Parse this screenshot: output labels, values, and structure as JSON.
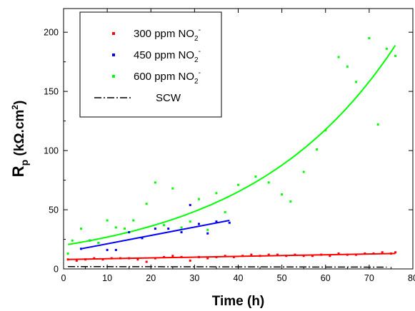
{
  "chart_data": {
    "type": "scatter",
    "xlabel": "Time (h)",
    "ylabel": {
      "main": "R",
      "sub": "p",
      "unit": " (kΩ.cm",
      "sup": "2",
      "close": ")"
    },
    "xlim": [
      0,
      80
    ],
    "ylim": [
      0,
      220
    ],
    "xticks": [
      0,
      10,
      20,
      30,
      40,
      50,
      60,
      70,
      80
    ],
    "yticks": [
      0,
      50,
      100,
      150,
      200
    ],
    "grid": false,
    "legend_position": "top-left",
    "series": [
      {
        "name": "300 ppm NO",
        "name_sub": "2",
        "name_sup": "-",
        "color": "#ff0000",
        "points": [
          [
            1,
            8
          ],
          [
            3,
            7
          ],
          [
            5,
            8
          ],
          [
            7,
            9
          ],
          [
            9,
            8
          ],
          [
            11,
            9
          ],
          [
            13,
            9
          ],
          [
            15,
            9
          ],
          [
            17,
            8
          ],
          [
            19,
            6
          ],
          [
            21,
            9
          ],
          [
            23,
            10
          ],
          [
            25,
            11
          ],
          [
            27,
            10
          ],
          [
            29,
            7
          ],
          [
            31,
            10
          ],
          [
            33,
            9
          ],
          [
            35,
            10
          ],
          [
            37,
            11
          ],
          [
            39,
            10
          ],
          [
            41,
            11
          ],
          [
            43,
            12
          ],
          [
            45,
            11
          ],
          [
            47,
            12
          ],
          [
            49,
            12
          ],
          [
            51,
            11
          ],
          [
            53,
            12
          ],
          [
            55,
            11
          ],
          [
            57,
            11
          ],
          [
            59,
            12
          ],
          [
            61,
            11
          ],
          [
            63,
            13
          ],
          [
            65,
            12
          ],
          [
            67,
            12
          ],
          [
            69,
            13
          ],
          [
            71,
            13
          ],
          [
            73,
            14
          ],
          [
            75,
            13
          ],
          [
            76,
            14
          ]
        ],
        "fit": {
          "x": [
            1,
            76
          ],
          "y": [
            8,
            13
          ]
        }
      },
      {
        "name": "450 ppm NO",
        "name_sub": "2",
        "name_sup": "-",
        "color": "#0000ff",
        "points": [
          [
            4,
            17
          ],
          [
            6,
            24
          ],
          [
            8,
            22
          ],
          [
            10,
            16
          ],
          [
            12,
            16
          ],
          [
            15,
            31
          ],
          [
            18,
            26
          ],
          [
            21,
            34
          ],
          [
            24,
            34
          ],
          [
            27,
            31
          ],
          [
            29,
            54
          ],
          [
            31,
            38
          ],
          [
            33,
            30
          ],
          [
            35,
            40
          ],
          [
            38,
            39
          ]
        ],
        "fit": {
          "x": [
            4,
            38
          ],
          "y": [
            17,
            41
          ]
        }
      },
      {
        "name": "600 ppm NO",
        "name_sub": "2",
        "name_sup": "-",
        "color": "#00ff00",
        "points": [
          [
            1,
            13
          ],
          [
            2,
            24
          ],
          [
            4,
            34
          ],
          [
            6,
            24
          ],
          [
            8,
            22
          ],
          [
            10,
            41
          ],
          [
            12,
            35
          ],
          [
            14,
            34
          ],
          [
            16,
            41
          ],
          [
            19,
            55
          ],
          [
            21,
            73
          ],
          [
            23,
            37
          ],
          [
            25,
            68
          ],
          [
            27,
            35
          ],
          [
            29,
            40
          ],
          [
            31,
            59
          ],
          [
            33,
            33
          ],
          [
            35,
            64
          ],
          [
            37,
            48
          ],
          [
            40,
            71
          ],
          [
            44,
            78
          ],
          [
            47,
            73
          ],
          [
            50,
            63
          ],
          [
            52,
            57
          ],
          [
            55,
            82
          ],
          [
            58,
            101
          ],
          [
            60,
            117
          ],
          [
            63,
            179
          ],
          [
            65,
            171
          ],
          [
            67,
            158
          ],
          [
            70,
            195
          ],
          [
            72,
            122
          ],
          [
            74,
            186
          ],
          [
            76,
            180
          ]
        ],
        "fit": {
          "a": 20,
          "b": 0.02955,
          "x_range": [
            1,
            76
          ]
        }
      },
      {
        "name": "SCW",
        "color": "#000000",
        "style": "dash-dot",
        "fit": {
          "x": [
            1,
            74
          ],
          "y": [
            2,
            1.5
          ]
        }
      }
    ]
  }
}
